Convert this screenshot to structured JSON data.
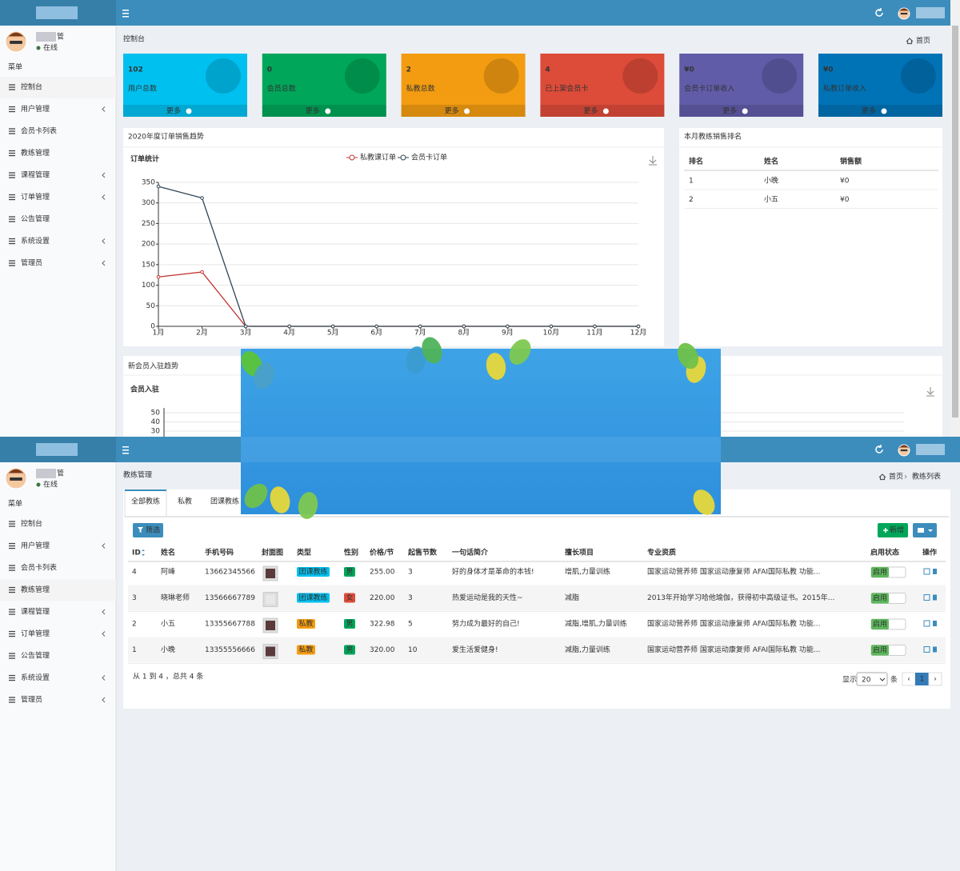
{
  "screen1": {
    "sidebar": {
      "user_name": "管",
      "user_status": "在线",
      "menu_label": "菜单",
      "active": 0,
      "menu": [
        {
          "label": "控制台"
        },
        {
          "label": "用户管理",
          "submenu": true
        },
        {
          "label": "会员卡列表"
        },
        {
          "label": "教练管理"
        },
        {
          "label": "课程管理",
          "submenu": true
        },
        {
          "label": "订单管理",
          "submenu": true
        },
        {
          "label": "公告管理"
        },
        {
          "label": "系统设置",
          "submenu": true
        },
        {
          "label": "管理员",
          "submenu": true
        }
      ]
    },
    "page_title": "控制台",
    "breadcrumb": [
      "首页"
    ],
    "stat_boxes": [
      {
        "value": "102",
        "label": "用户总数",
        "more": "更多",
        "color": "#00c0ef"
      },
      {
        "value": "0",
        "label": "会员总数",
        "more": "更多",
        "color": "#00a65a"
      },
      {
        "value": "2",
        "label": "私教总数",
        "more": "更多",
        "color": "#f39c12"
      },
      {
        "value": "4",
        "label": "已上架会员卡",
        "more": "更多",
        "color": "#dd4b39"
      },
      {
        "value": "¥0",
        "label": "会员卡订单收入",
        "more": "更多",
        "color": "#605ca8"
      },
      {
        "value": "¥0",
        "label": "私教订单收入",
        "more": "更多",
        "color": "#0073b7"
      }
    ],
    "order_panel": {
      "title": "2020年度订单销售趋势",
      "chart_data": {
        "type": "line",
        "title": "订单统计",
        "categories": [
          "1月",
          "2月",
          "3月",
          "4月",
          "5月",
          "6月",
          "7月",
          "8月",
          "9月",
          "10月",
          "11月",
          "12月"
        ],
        "series": [
          {
            "name": "私教课订单",
            "color": "#c23531",
            "values": [
              120,
              132,
              0,
              0,
              0,
              0,
              0,
              0,
              0,
              0,
              0,
              0
            ]
          },
          {
            "name": "会员卡订单",
            "color": "#2f4554",
            "values": [
              340,
              312,
              0,
              0,
              0,
              0,
              0,
              0,
              0,
              0,
              0,
              0
            ]
          }
        ],
        "ylim": [
          0,
          350
        ],
        "yticks": [
          0,
          50,
          100,
          150,
          200,
          250,
          300,
          350
        ],
        "grid": true
      }
    },
    "ranking_panel": {
      "title": "本月教练销售排名",
      "columns": [
        "排名",
        "姓名",
        "销售额"
      ],
      "rows": [
        [
          "1",
          "小晚",
          "¥0"
        ],
        [
          "2",
          "小五",
          "¥0"
        ]
      ]
    },
    "member_panel": {
      "title": "新会员入驻趋势",
      "chart_data": {
        "type": "line",
        "title": "会员入驻",
        "ylim": [
          0,
          50
        ],
        "yticks": [
          30,
          40,
          50
        ],
        "grid": true
      }
    }
  },
  "screen2": {
    "sidebar": {
      "user_name": "管",
      "user_status": "在线",
      "menu_label": "菜单",
      "active": 3,
      "menu": [
        {
          "label": "控制台"
        },
        {
          "label": "用户管理",
          "submenu": true
        },
        {
          "label": "会员卡列表"
        },
        {
          "label": "教练管理"
        },
        {
          "label": "课程管理",
          "submenu": true
        },
        {
          "label": "订单管理",
          "submenu": true
        },
        {
          "label": "公告管理"
        },
        {
          "label": "系统设置",
          "submenu": true
        },
        {
          "label": "管理员",
          "submenu": true
        }
      ]
    },
    "page_title": "教练管理",
    "breadcrumb": [
      "首页",
      "教练列表"
    ],
    "tabs": [
      "全部教练",
      "私教",
      "团课教练"
    ],
    "buttons": {
      "filter": "筛选",
      "add": "新增"
    },
    "table": {
      "columns": [
        "ID",
        "姓名",
        "手机号码",
        "封面图",
        "类型",
        "性别",
        "价格/节",
        "起售节数",
        "一句话简介",
        "擅长项目",
        "专业资质",
        "启用状态",
        "操作"
      ],
      "rows": [
        {
          "id": "4",
          "name": "阿峰",
          "phone": "13662345566",
          "type": "团课教练",
          "type_color": "#00c0ef",
          "gender": "男",
          "gender_color": "#00a65a",
          "price": "255.00",
          "min_sessions": "3",
          "intro": "好的身体才是革命的本钱!",
          "skills": "增肌,力量训练",
          "qualification": "国家运动营养师 国家运动康复师 AFAI国际私教 功能...",
          "status": "启用"
        },
        {
          "id": "3",
          "name": "晓琳老师",
          "phone": "13566667789",
          "type": "团课教练",
          "type_color": "#00c0ef",
          "gender": "女",
          "gender_color": "#dd4b39",
          "price": "220.00",
          "min_sessions": "3",
          "intro": "热爱运动是我的天性~",
          "skills": "减脂",
          "qualification": "2013年开始学习哈他瑜伽，获得初中高级证书。2015年...",
          "status": "启用"
        },
        {
          "id": "2",
          "name": "小五",
          "phone": "13355667788",
          "type": "私教",
          "type_color": "#f39c12",
          "gender": "男",
          "gender_color": "#00a65a",
          "price": "322.98",
          "min_sessions": "5",
          "intro": "努力成为最好的自己!",
          "skills": "减脂,增肌,力量训练",
          "qualification": "国家运动营养师 国家运动康复师 AFAI国际私教 功能...",
          "status": "启用"
        },
        {
          "id": "1",
          "name": "小晚",
          "phone": "13355556666",
          "type": "私教",
          "type_color": "#f39c12",
          "gender": "男",
          "gender_color": "#00a65a",
          "price": "320.00",
          "min_sessions": "10",
          "intro": "爱生活爱健身!",
          "skills": "减脂,力量训练",
          "qualification": "国家运动营养师 国家运动康复师 AFAI国际私教 功能...",
          "status": "启用"
        }
      ]
    },
    "footer": {
      "summary": "从 1 到 4 ，总共 4 条",
      "show": "显示",
      "page_size": "20",
      "unit": "条",
      "prev": "‹",
      "pages": [
        "1"
      ],
      "next": "›"
    }
  }
}
